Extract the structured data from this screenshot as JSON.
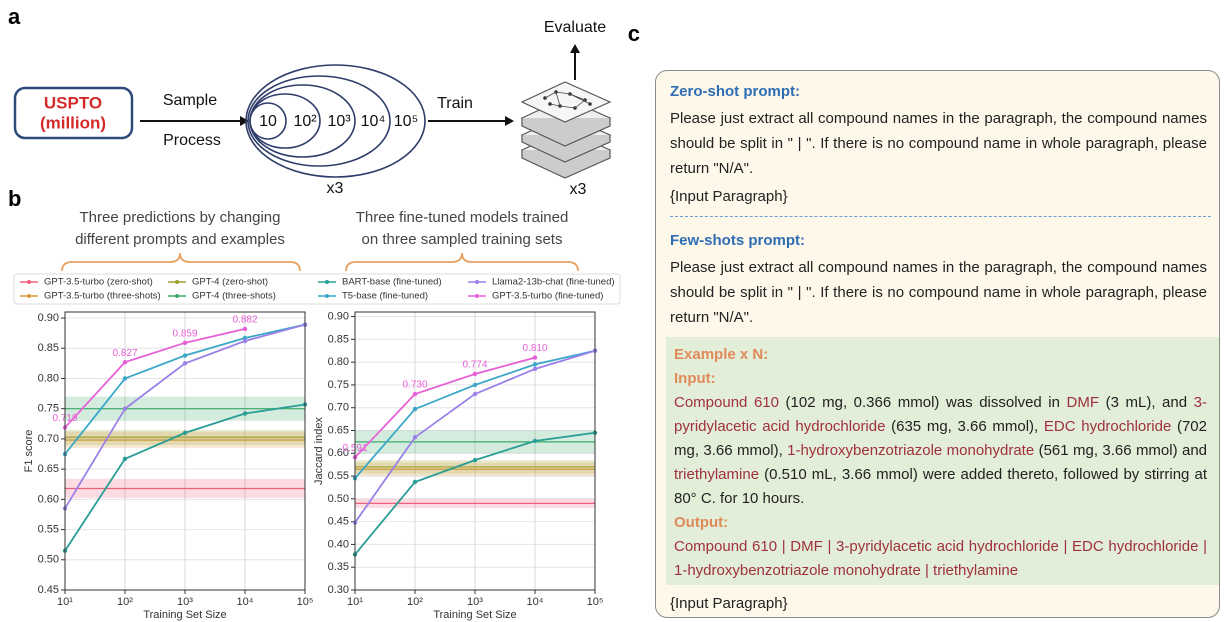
{
  "panel_labels": [
    "a",
    "b",
    "c"
  ],
  "diagram": {
    "source": [
      "USPTO",
      "(million)"
    ],
    "sample": "Sample",
    "process": "Process",
    "sizes": [
      "10",
      "10²",
      "10³",
      "10⁴",
      "10⁵"
    ],
    "repeats": [
      "x3",
      "x3"
    ],
    "train": "Train",
    "evaluate": "Evaluate"
  },
  "panel_b": {
    "annotations": [
      [
        "Three predictions by changing",
        "different prompts and examples"
      ],
      [
        "Three fine-tuned models trained",
        "on three sampled training sets"
      ]
    ]
  },
  "chart_data": [
    {
      "type": "line",
      "xlabel": "Training Set Size",
      "ylabel": "F1 score",
      "xscale": "log",
      "grid": true,
      "legend": "top",
      "x": [
        10,
        100,
        1000,
        10000,
        100000
      ],
      "xlim": [
        10,
        100000
      ],
      "xticks": [
        {
          "value": 10,
          "label": "10¹"
        },
        {
          "value": 100,
          "label": "10²"
        },
        {
          "value": 1000,
          "label": "10³"
        },
        {
          "value": 10000,
          "label": "10⁴"
        },
        {
          "value": 100000,
          "label": "10⁵"
        }
      ],
      "ylim": [
        0.45,
        0.91
      ],
      "yticks": [
        0.45,
        {
          "value": 0.5,
          "label": "0.50"
        },
        0.55,
        {
          "value": 0.6,
          "label": "0.60"
        },
        0.65,
        {
          "value": 0.7,
          "label": "0.70"
        },
        0.75,
        {
          "value": 0.8,
          "label": "0.80"
        },
        0.85,
        {
          "value": 0.9,
          "label": "0.90"
        }
      ],
      "series": [
        {
          "name": "GPT-3.5-turbo (zero-shot)",
          "color": "#f0607a",
          "values": [
            0.618,
            0.618,
            0.618,
            0.618,
            0.618
          ],
          "band": [
            0.602,
            0.634
          ]
        },
        {
          "name": "GPT-3.5-turbo (three-shots)",
          "color": "#d89a3a",
          "values": [
            0.698,
            0.698,
            0.698,
            0.698,
            0.698
          ],
          "band": [
            0.685,
            0.712
          ]
        },
        {
          "name": "GPT-4 (zero-shot)",
          "color": "#a0a030",
          "values": [
            0.703,
            0.703,
            0.703,
            0.703,
            0.703
          ],
          "band": [
            0.69,
            0.715
          ]
        },
        {
          "name": "GPT-4 (three-shots)",
          "color": "#3aaa6a",
          "values": [
            0.75,
            0.75,
            0.75,
            0.75,
            0.75
          ],
          "band": [
            0.73,
            0.77
          ]
        },
        {
          "name": "BART-base (fine-tuned)",
          "color": "#2a9d96",
          "values": [
            0.515,
            0.667,
            0.71,
            0.742,
            0.757
          ]
        },
        {
          "name": "T5-base (fine-tuned)",
          "color": "#3aa8c8",
          "values": [
            0.675,
            0.8,
            0.838,
            0.867,
            0.889
          ]
        },
        {
          "name": "Llama2-13b-chat (fine-tuned)",
          "color": "#9a80e8",
          "values": [
            0.585,
            0.75,
            0.825,
            0.862,
            0.889
          ]
        },
        {
          "name": "GPT-3.5-turbo (fine-tuned)",
          "color": "#e860d8",
          "values": [
            0.719,
            0.827,
            0.859,
            0.882,
            null
          ],
          "value_labels": [
            "0.719",
            "0.827",
            "0.859",
            "0.882",
            null
          ]
        }
      ]
    },
    {
      "type": "line",
      "xlabel": "Training Set Size",
      "ylabel": "Jaccard index",
      "xscale": "log",
      "grid": true,
      "x": [
        10,
        100,
        1000,
        10000,
        100000
      ],
      "xlim": [
        10,
        100000
      ],
      "xticks": [
        {
          "value": 10,
          "label": "10¹"
        },
        {
          "value": 100,
          "label": "10²"
        },
        {
          "value": 1000,
          "label": "10³"
        },
        {
          "value": 10000,
          "label": "10⁴"
        },
        {
          "value": 100000,
          "label": "10⁵"
        }
      ],
      "ylim": [
        0.3,
        0.91
      ],
      "yticks": [
        {
          "value": 0.3,
          "label": "0.30"
        },
        0.35,
        {
          "value": 0.4,
          "label": "0.40"
        },
        0.45,
        {
          "value": 0.5,
          "label": "0.50"
        },
        0.55,
        {
          "value": 0.6,
          "label": "0.60"
        },
        0.65,
        {
          "value": 0.7,
          "label": "0.70"
        },
        0.75,
        {
          "value": 0.8,
          "label": "0.80"
        },
        0.85,
        {
          "value": 0.9,
          "label": "0.90"
        }
      ],
      "series": [
        {
          "color": "#f0607a",
          "values": [
            0.49,
            0.49,
            0.49,
            0.49,
            0.49
          ],
          "band": [
            0.48,
            0.5
          ]
        },
        {
          "color": "#d89a3a",
          "values": [
            0.565,
            0.565,
            0.565,
            0.565,
            0.565
          ],
          "band": [
            0.55,
            0.58
          ]
        },
        {
          "color": "#a0a030",
          "values": [
            0.57,
            0.57,
            0.57,
            0.57,
            0.57
          ],
          "band": [
            0.555,
            0.585
          ]
        },
        {
          "color": "#3aaa6a",
          "values": [
            0.625,
            0.625,
            0.625,
            0.625,
            0.625
          ],
          "band": [
            0.6,
            0.65
          ]
        },
        {
          "color": "#2a9d96",
          "values": [
            0.378,
            0.537,
            0.585,
            0.627,
            0.645
          ]
        },
        {
          "color": "#3aa8c8",
          "values": [
            0.545,
            0.697,
            0.75,
            0.795,
            0.825
          ]
        },
        {
          "color": "#9a80e8",
          "values": [
            0.448,
            0.635,
            0.73,
            0.785,
            0.825
          ]
        },
        {
          "color": "#e860d8",
          "values": [
            0.591,
            0.73,
            0.774,
            0.81,
            null
          ],
          "value_labels": [
            "0.591",
            "0.730",
            "0.774",
            "0.810",
            null
          ]
        }
      ]
    }
  ],
  "prompts": {
    "zero_shot": {
      "title": "Zero-shot prompt:",
      "text": "Please just extract all compound names in the paragraph, the compound names should be split in \" | \". If there is no compound name in whole paragraph, please return \"N/A\".",
      "input": "{Input Paragraph}"
    },
    "few_shots": {
      "title": "Few-shots prompt:",
      "text": "Please just extract all compound names in the paragraph, the compound names should be split in \" | \". If there is no compound name in whole paragraph, please return \"N/A\".",
      "example": {
        "title": "Example x N:",
        "input_label": "Input:",
        "input": [
          {
            "text": "Compound 610",
            "highlight": true
          },
          {
            "text": " (102 mg, 0.366 mmol) was dissolved in ",
            "highlight": false
          },
          {
            "text": "DMF",
            "highlight": true
          },
          {
            "text": " (3 mL), and ",
            "highlight": false
          },
          {
            "text": "3-pyridylacetic acid hydrochloride",
            "highlight": true
          },
          {
            "text": " (635 mg, 3.66 mmol), ",
            "highlight": false
          },
          {
            "text": "EDC hydrochloride",
            "highlight": true
          },
          {
            "text": " (702 mg, 3.66 mmol), ",
            "highlight": false
          },
          {
            "text": "1-hydroxybenzotriazole monohydrate",
            "highlight": true
          },
          {
            "text": " (561 mg, 3.66 mmol) and ",
            "highlight": false
          },
          {
            "text": "triethylamine",
            "highlight": true
          },
          {
            "text": " (0.510 mL, 3.66 mmol) were added thereto, followed by stirring at 80° C. for 10 hours.",
            "highlight": false
          }
        ],
        "output_label": "Output:",
        "output": "Compound 610 | DMF | 3-pyridylacetic acid hydrochloride | EDC hydrochloride | 1-hydroxybenzotriazole monohydrate | triethylamine"
      },
      "input": "{Input Paragraph}"
    }
  }
}
